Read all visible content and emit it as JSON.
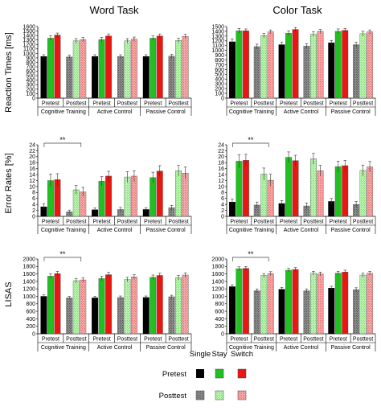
{
  "columns": [
    "Word Task",
    "Color Task"
  ],
  "row_labels": [
    "Reaction Times [ms]",
    "Error Rates [%]",
    "LISAS"
  ],
  "legend": {
    "column_headers": [
      "Single",
      "Stay",
      "Switch"
    ],
    "rows": [
      {
        "label": "Pretest",
        "colors": [
          "#000000",
          "#1fc01f",
          "#e8170f"
        ]
      },
      {
        "label": "Posttest",
        "colors": [
          "#777777",
          "#a6ee9a",
          "#f39393"
        ]
      }
    ]
  },
  "colors": {
    "pre_single": "#000000",
    "pre_stay": "#1fc01f",
    "pre_switch": "#e8170f",
    "post_single": "#777777",
    "post_stay": "#a6ee9a",
    "post_switch": "#f39393"
  },
  "chart_data": [
    {
      "type": "bar",
      "row": 0,
      "col": 0,
      "title": "Word Task",
      "ylabel": "Reaction Times [ms]",
      "ylim": [
        0,
        1600
      ],
      "yticks": [
        0,
        100,
        200,
        300,
        400,
        500,
        600,
        700,
        800,
        900,
        1000,
        1100,
        1200,
        1300,
        1400,
        1500,
        1600
      ],
      "groups": [
        "Cognitive Training",
        "Active Control",
        "Passive Control"
      ],
      "sessions": [
        "Pretest",
        "Posttest"
      ],
      "series": [
        {
          "name": "Single",
          "values": [
            [
              930,
              920
            ],
            [
              930,
              930
            ],
            [
              930,
              940
            ]
          ],
          "errors": [
            [
              40,
              40
            ],
            [
              40,
              40
            ],
            [
              40,
              40
            ]
          ]
        },
        {
          "name": "Stay",
          "values": [
            [
              1340,
              1280
            ],
            [
              1310,
              1280
            ],
            [
              1340,
              1290
            ]
          ],
          "errors": [
            [
              50,
              50
            ],
            [
              50,
              50
            ],
            [
              50,
              50
            ]
          ]
        },
        {
          "name": "Switch",
          "values": [
            [
              1410,
              1310
            ],
            [
              1390,
              1320
            ],
            [
              1390,
              1380
            ]
          ],
          "errors": [
            [
              45,
              45
            ],
            [
              45,
              45
            ],
            [
              45,
              45
            ]
          ]
        }
      ],
      "significance": []
    },
    {
      "type": "bar",
      "row": 0,
      "col": 1,
      "title": "Color Task",
      "ylabel": "",
      "ylim": [
        0,
        1500
      ],
      "yticks": [
        0,
        100,
        200,
        300,
        400,
        500,
        600,
        700,
        800,
        900,
        1000,
        1100,
        1200,
        1300,
        1400,
        1500
      ],
      "groups": [
        "Cognitive Training",
        "Active Control",
        "Passive Control"
      ],
      "sessions": [
        "Pretest",
        "Posttest"
      ],
      "series": [
        {
          "name": "Single",
          "values": [
            [
              1180,
              1080
            ],
            [
              1120,
              1090
            ],
            [
              1160,
              1120
            ]
          ],
          "errors": [
            [
              60,
              50
            ],
            [
              50,
              50
            ],
            [
              50,
              50
            ]
          ]
        },
        {
          "name": "Stay",
          "values": [
            [
              1410,
              1310
            ],
            [
              1360,
              1340
            ],
            [
              1400,
              1350
            ]
          ],
          "errors": [
            [
              50,
              50
            ],
            [
              50,
              50
            ],
            [
              50,
              50
            ]
          ]
        },
        {
          "name": "Switch",
          "values": [
            [
              1410,
              1390
            ],
            [
              1440,
              1400
            ],
            [
              1420,
              1390
            ]
          ],
          "errors": [
            [
              40,
              40
            ],
            [
              40,
              40
            ],
            [
              40,
              40
            ]
          ]
        }
      ],
      "significance": []
    },
    {
      "type": "bar",
      "row": 1,
      "col": 0,
      "title": "",
      "ylabel": "Error Rates [%]",
      "ylim": [
        0,
        24
      ],
      "yticks": [
        0,
        2,
        4,
        6,
        8,
        10,
        12,
        14,
        16,
        18,
        20,
        22,
        24
      ],
      "groups": [
        "Cognitive Training",
        "Active Control",
        "Passive Control"
      ],
      "sessions": [
        "Pretest",
        "Posttest"
      ],
      "series": [
        {
          "name": "Single",
          "values": [
            [
              3.2,
              1.5
            ],
            [
              2.2,
              2.3
            ],
            [
              2.3,
              2.9
            ]
          ],
          "errors": [
            [
              1.0,
              0.6
            ],
            [
              0.6,
              0.7
            ],
            [
              0.6,
              0.8
            ]
          ]
        },
        {
          "name": "Stay",
          "values": [
            [
              12.0,
              8.9
            ],
            [
              11.8,
              13.2
            ],
            [
              13.0,
              15.3
            ]
          ],
          "errors": [
            [
              2.2,
              1.5
            ],
            [
              1.5,
              1.8
            ],
            [
              1.8,
              1.8
            ]
          ]
        },
        {
          "name": "Switch",
          "values": [
            [
              12.3,
              8.2
            ],
            [
              13.5,
              13.5
            ],
            [
              15.2,
              14.5
            ]
          ],
          "errors": [
            [
              2.0,
              1.5
            ],
            [
              1.6,
              1.8
            ],
            [
              1.8,
              2.0
            ]
          ]
        }
      ],
      "significance": [
        {
          "label": "**",
          "from": "Cognitive Training Pretest",
          "to": "Cognitive Training Posttest"
        }
      ]
    },
    {
      "type": "bar",
      "row": 1,
      "col": 1,
      "title": "",
      "ylabel": "",
      "ylim": [
        0,
        24
      ],
      "yticks": [
        0,
        2,
        4,
        6,
        8,
        10,
        12,
        14,
        16,
        18,
        20,
        22,
        24
      ],
      "groups": [
        "Cognitive Training",
        "Active Control",
        "Passive Control"
      ],
      "sessions": [
        "Pretest",
        "Posttest"
      ],
      "series": [
        {
          "name": "Single",
          "values": [
            [
              4.8,
              3.8
            ],
            [
              4.3,
              3.5
            ],
            [
              5.0,
              4.0
            ]
          ],
          "errors": [
            [
              1.0,
              1.0
            ],
            [
              1.0,
              1.0
            ],
            [
              1.0,
              1.0
            ]
          ]
        },
        {
          "name": "Stay",
          "values": [
            [
              18.5,
              14.2
            ],
            [
              19.8,
              19.3
            ],
            [
              16.7,
              15.4
            ]
          ],
          "errors": [
            [
              2.2,
              2.0
            ],
            [
              1.8,
              1.8
            ],
            [
              1.8,
              1.8
            ]
          ]
        },
        {
          "name": "Switch",
          "values": [
            [
              18.8,
              12.1
            ],
            [
              18.7,
              15.3
            ],
            [
              17.0,
              16.6
            ]
          ],
          "errors": [
            [
              2.0,
              2.0
            ],
            [
              1.8,
              1.8
            ],
            [
              1.8,
              1.8
            ]
          ]
        }
      ],
      "significance": [
        {
          "label": "**",
          "from": "Cognitive Training Pretest",
          "to": "Cognitive Training Posttest"
        }
      ]
    },
    {
      "type": "bar",
      "row": 2,
      "col": 0,
      "title": "",
      "ylabel": "LISAS",
      "ylim": [
        0,
        2000
      ],
      "yticks": [
        0,
        200,
        400,
        600,
        800,
        1000,
        1200,
        1400,
        1600,
        1800,
        2000
      ],
      "groups": [
        "Cognitive Training",
        "Active Control",
        "Passive Control"
      ],
      "sessions": [
        "Pretest",
        "Posttest"
      ],
      "series": [
        {
          "name": "Single",
          "values": [
            [
              1000,
              960
            ],
            [
              960,
              970
            ],
            [
              970,
              990
            ]
          ],
          "errors": [
            [
              40,
              40
            ],
            [
              40,
              40
            ],
            [
              40,
              40
            ]
          ]
        },
        {
          "name": "Stay",
          "values": [
            [
              1540,
              1420
            ],
            [
              1480,
              1450
            ],
            [
              1510,
              1500
            ]
          ],
          "errors": [
            [
              60,
              60
            ],
            [
              60,
              60
            ],
            [
              60,
              60
            ]
          ]
        },
        {
          "name": "Switch",
          "values": [
            [
              1610,
              1440
            ],
            [
              1580,
              1520
            ],
            [
              1560,
              1570
            ]
          ],
          "errors": [
            [
              60,
              60
            ],
            [
              60,
              60
            ],
            [
              60,
              60
            ]
          ]
        }
      ],
      "significance": [
        {
          "label": "**",
          "from": "Cognitive Training Pretest",
          "to": "Cognitive Training Posttest"
        }
      ]
    },
    {
      "type": "bar",
      "row": 2,
      "col": 1,
      "title": "",
      "ylabel": "",
      "ylim": [
        0,
        2000
      ],
      "yticks": [
        0,
        200,
        400,
        600,
        800,
        1000,
        1200,
        1400,
        1600,
        1800,
        2000
      ],
      "groups": [
        "Cognitive Training",
        "Active Control",
        "Passive Control"
      ],
      "sessions": [
        "Pretest",
        "Posttest"
      ],
      "series": [
        {
          "name": "Single",
          "values": [
            [
              1260,
              1150
            ],
            [
              1190,
              1150
            ],
            [
              1220,
              1180
            ]
          ],
          "errors": [
            [
              50,
              50
            ],
            [
              50,
              50
            ],
            [
              50,
              50
            ]
          ]
        },
        {
          "name": "Stay",
          "values": [
            [
              1740,
              1560
            ],
            [
              1700,
              1620
            ],
            [
              1620,
              1570
            ]
          ],
          "errors": [
            [
              50,
              50
            ],
            [
              50,
              50
            ],
            [
              50,
              50
            ]
          ]
        },
        {
          "name": "Switch",
          "values": [
            [
              1750,
              1610
            ],
            [
              1720,
              1600
            ],
            [
              1650,
              1620
            ]
          ],
          "errors": [
            [
              50,
              50
            ],
            [
              50,
              50
            ],
            [
              50,
              50
            ]
          ]
        }
      ],
      "significance": [
        {
          "label": "**",
          "from": "Cognitive Training Pretest",
          "to": "Cognitive Training Posttest"
        }
      ]
    }
  ]
}
